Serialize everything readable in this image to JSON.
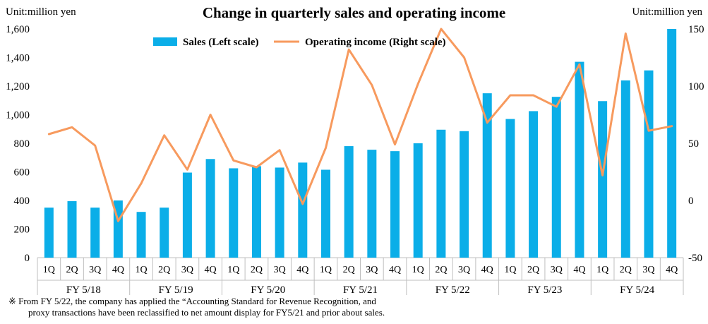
{
  "chart_data": {
    "type": "bar-line combo",
    "title": "Change in quarterly sales and operating income",
    "unit_left": "Unit:million yen",
    "unit_right": "Unit:million yen",
    "footnote_lines": [
      "※ From FY 5/22, the company has applied the “Accounting Standard for Revenue Recognition, and",
      "proxy transactions have been reclassified to net amount display for FY5/21 and prior about sales."
    ],
    "legend_position": "top-center",
    "grid": false,
    "quarter_labels": [
      "1Q",
      "2Q",
      "3Q",
      "4Q",
      "1Q",
      "2Q",
      "3Q",
      "4Q",
      "1Q",
      "2Q",
      "3Q",
      "4Q",
      "1Q",
      "2Q",
      "3Q",
      "4Q",
      "1Q",
      "2Q",
      "3Q",
      "4Q",
      "1Q",
      "2Q",
      "3Q",
      "4Q",
      "1Q",
      "2Q",
      "3Q",
      "4Q"
    ],
    "fiscal_years": [
      "FY 5/18",
      "FY 5/19",
      "FY 5/20",
      "FY 5/21",
      "FY 5/22",
      "FY 5/23",
      "FY 5/24"
    ],
    "left_axis": {
      "ylim": [
        0,
        1600
      ],
      "ticks": [
        "0",
        "200",
        "400",
        "600",
        "800",
        "1,000",
        "1,200",
        "1,400",
        "1,600"
      ]
    },
    "right_axis": {
      "ylim": [
        -50,
        150
      ],
      "ticks": [
        "-50",
        "0",
        "50",
        "100",
        "150"
      ]
    },
    "series": [
      {
        "name": "Sales (Left scale)",
        "type": "bar",
        "axis": "left",
        "color": "#0BAEE8",
        "values": [
          350,
          395,
          350,
          400,
          320,
          350,
          595,
          690,
          625,
          640,
          630,
          665,
          615,
          780,
          755,
          745,
          800,
          895,
          885,
          1150,
          970,
          1025,
          1125,
          1370,
          1095,
          1240,
          1310,
          1600
        ]
      },
      {
        "name": "Operating income (Right scale)",
        "type": "line",
        "axis": "right",
        "color": "#F79A5E",
        "values": [
          58,
          64,
          48,
          -18,
          15,
          57,
          27,
          75,
          35,
          29,
          44,
          -3,
          46,
          132,
          101,
          49,
          102,
          150,
          125,
          68,
          92,
          92,
          82,
          119,
          22,
          146,
          61,
          65
        ]
      }
    ]
  }
}
